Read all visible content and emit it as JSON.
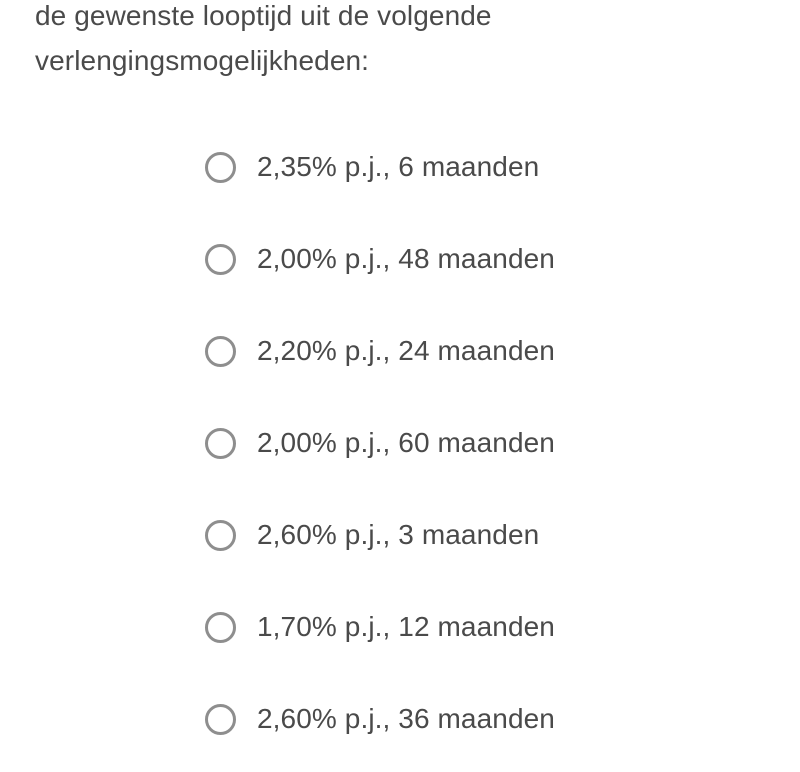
{
  "colors": {
    "text": "#4a4a4a",
    "radio_border": "#8e8e8e",
    "background": "#ffffff"
  },
  "question": {
    "text": "de gewenste looptijd uit de volgende verlengingsmogelijkheden:"
  },
  "options": [
    {
      "label": "2,35% p.j., 6 maanden",
      "selected": false
    },
    {
      "label": "2,00% p.j., 48 maanden",
      "selected": false
    },
    {
      "label": "2,20% p.j., 24 maanden",
      "selected": false
    },
    {
      "label": "2,00% p.j., 60 maanden",
      "selected": false
    },
    {
      "label": "2,60% p.j., 3 maanden",
      "selected": false
    },
    {
      "label": "1,70% p.j., 12 maanden",
      "selected": false
    },
    {
      "label": "2,60% p.j., 36 maanden",
      "selected": false
    }
  ]
}
